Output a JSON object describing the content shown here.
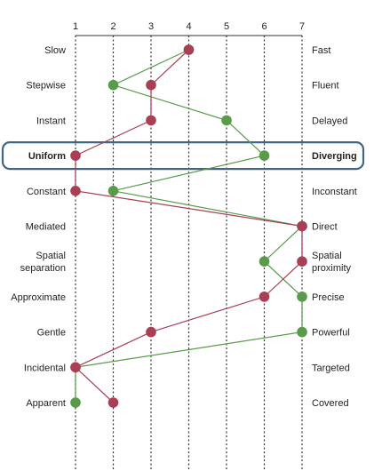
{
  "chart_data": {
    "type": "line",
    "x_ticks": [
      1,
      2,
      3,
      4,
      5,
      6,
      7
    ],
    "xlim": [
      1,
      7
    ],
    "grid": "dotted vertical",
    "rows": [
      {
        "left": "Slow",
        "right": "Fast",
        "highlight": false
      },
      {
        "left": "Stepwise",
        "right": "Fluent",
        "highlight": false
      },
      {
        "left": "Instant",
        "right": "Delayed",
        "highlight": false
      },
      {
        "left": "Uniform",
        "right": "Diverging",
        "highlight": true
      },
      {
        "left": "Constant",
        "right": "Inconstant",
        "highlight": false
      },
      {
        "left": "Mediated",
        "right": "Direct",
        "highlight": false
      },
      {
        "left": "Spatial\nseparation",
        "right": "Spatial\nproximity",
        "highlight": false
      },
      {
        "left": "Approximate",
        "right": "Precise",
        "highlight": false
      },
      {
        "left": "Gentle",
        "right": "Powerful",
        "highlight": false
      },
      {
        "left": "Incidental",
        "right": "Targeted",
        "highlight": false
      },
      {
        "left": "Apparent",
        "right": "Covered",
        "highlight": false
      }
    ],
    "series": [
      {
        "color": "#5a9a4b",
        "values": [
          4,
          2,
          5,
          6,
          2,
          7,
          6,
          7,
          7,
          1,
          1
        ]
      },
      {
        "color": "#a83f55",
        "values": [
          4,
          3,
          3,
          1,
          1,
          7,
          7,
          6,
          3,
          1,
          2
        ]
      }
    ]
  },
  "colors": {
    "highlight_box": "#3f6684",
    "grid": "#333333"
  }
}
